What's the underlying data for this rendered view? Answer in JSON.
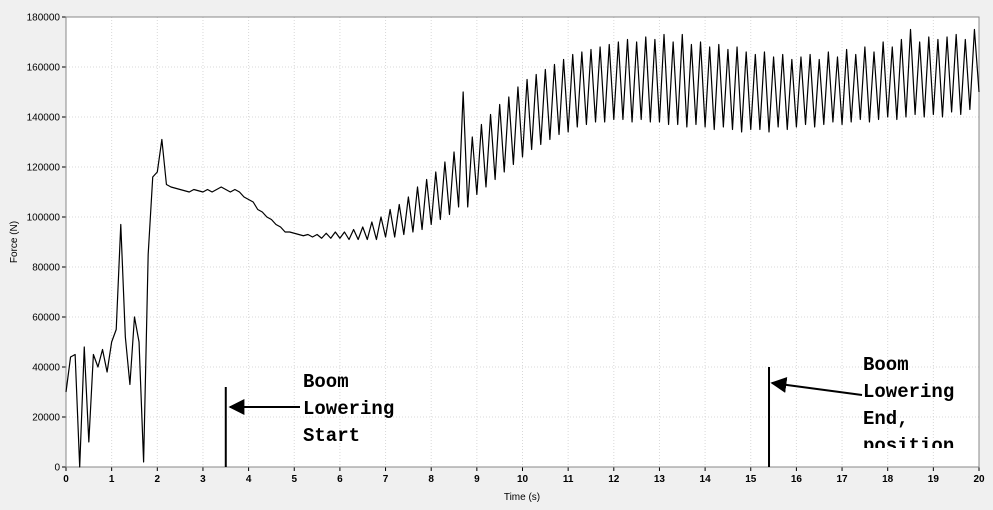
{
  "chart_data": {
    "type": "line",
    "xlabel": "Time (s)",
    "ylabel": "Force (N)",
    "x": [
      0,
      0.1,
      0.2,
      0.3,
      0.4,
      0.5,
      0.6,
      0.7,
      0.8,
      0.9,
      1,
      1.1,
      1.2,
      1.3,
      1.4,
      1.5,
      1.6,
      1.7,
      1.8,
      1.9,
      2,
      2.1,
      2.2,
      2.3,
      2.4,
      2.5,
      2.6,
      2.7,
      2.8,
      2.9,
      3,
      3.1,
      3.2,
      3.3,
      3.4,
      3.5,
      3.6,
      3.7,
      3.8,
      3.9,
      4,
      4.1,
      4.2,
      4.3,
      4.4,
      4.5,
      4.6,
      4.7,
      4.8,
      4.9,
      5,
      5.1,
      5.2,
      5.3,
      5.4,
      5.5,
      5.6,
      5.7,
      5.8,
      5.9,
      6,
      6.1,
      6.2,
      6.3,
      6.4,
      6.5,
      6.6,
      6.7,
      6.8,
      6.9,
      7,
      7.1,
      7.2,
      7.3,
      7.4,
      7.5,
      7.6,
      7.7,
      7.8,
      7.9,
      8,
      8.1,
      8.2,
      8.3,
      8.4,
      8.5,
      8.6,
      8.7,
      8.8,
      8.9,
      9,
      9.1,
      9.2,
      9.3,
      9.4,
      9.5,
      9.6,
      9.7,
      9.8,
      9.9,
      10,
      10.1,
      10.2,
      10.3,
      10.4,
      10.5,
      10.6,
      10.7,
      10.8,
      10.9,
      11,
      11.1,
      11.2,
      11.3,
      11.4,
      11.5,
      11.6,
      11.7,
      11.8,
      11.9,
      12,
      12.1,
      12.2,
      12.3,
      12.4,
      12.5,
      12.6,
      12.7,
      12.8,
      12.9,
      13,
      13.1,
      13.2,
      13.3,
      13.4,
      13.5,
      13.6,
      13.7,
      13.8,
      13.9,
      14,
      14.1,
      14.2,
      14.3,
      14.4,
      14.5,
      14.6,
      14.7,
      14.8,
      14.9,
      15,
      15.1,
      15.2,
      15.3,
      15.4,
      15.5,
      15.6,
      15.7,
      15.8,
      15.9,
      16,
      16.1,
      16.2,
      16.3,
      16.4,
      16.5,
      16.6,
      16.7,
      16.8,
      16.9,
      17,
      17.1,
      17.2,
      17.3,
      17.4,
      17.5,
      17.6,
      17.7,
      17.8,
      17.9,
      18,
      18.1,
      18.2,
      18.3,
      18.4,
      18.5,
      18.6,
      18.7,
      18.8,
      18.9,
      19,
      19.1,
      19.2,
      19.3,
      19.4,
      19.5,
      19.6,
      19.7,
      19.8,
      19.9,
      20
    ],
    "series": [
      {
        "color": "#000000",
        "values": [
          30000,
          44000,
          45000,
          0,
          48000,
          10000,
          45000,
          40000,
          47000,
          38000,
          50000,
          55000,
          97000,
          52000,
          33000,
          60000,
          50000,
          2000,
          85000,
          116000,
          118000,
          131000,
          113000,
          112000,
          111500,
          111000,
          110500,
          110000,
          111000,
          110500,
          110000,
          111000,
          110000,
          111000,
          112000,
          111000,
          110000,
          111000,
          110000,
          108000,
          107000,
          106000,
          103000,
          102000,
          100000,
          99000,
          97000,
          96000,
          94000,
          94000,
          93500,
          93000,
          92500,
          93000,
          92000,
          93000,
          91500,
          93500,
          91500,
          94000,
          91500,
          94000,
          91000,
          95000,
          91000,
          96000,
          91000,
          98000,
          91000,
          100000,
          92000,
          103000,
          92000,
          105000,
          93000,
          108000,
          94000,
          112000,
          95000,
          115000,
          97000,
          118000,
          99000,
          122000,
          101000,
          126000,
          104000,
          150000,
          104000,
          132000,
          109000,
          137000,
          112000,
          141000,
          115000,
          145000,
          118000,
          148000,
          121000,
          152000,
          124000,
          155000,
          127000,
          157000,
          129000,
          159000,
          131000,
          161000,
          133000,
          163000,
          134000,
          165000,
          136000,
          166000,
          137000,
          167000,
          138000,
          168000,
          138000,
          169000,
          139000,
          170000,
          139000,
          171000,
          138000,
          170000,
          139000,
          172000,
          138000,
          171000,
          138000,
          173000,
          137000,
          170000,
          137000,
          173000,
          136000,
          169000,
          137000,
          170000,
          136000,
          168000,
          135000,
          169000,
          136000,
          167000,
          135000,
          168000,
          134000,
          166000,
          135000,
          165000,
          135000,
          166000,
          134000,
          164000,
          136000,
          165000,
          135000,
          163000,
          136000,
          164000,
          137000,
          165000,
          136000,
          163000,
          137000,
          166000,
          138000,
          164000,
          137000,
          167000,
          138000,
          165000,
          139000,
          168000,
          138000,
          166000,
          139000,
          170000,
          140000,
          168000,
          139000,
          171000,
          140000,
          175000,
          141000,
          170000,
          140000,
          172000,
          141000,
          171000,
          140000,
          172000,
          142000,
          173000,
          141000,
          171000,
          143000,
          175000,
          150000
        ]
      }
    ],
    "xlim": [
      0,
      20
    ],
    "xticks": [
      0,
      1,
      2,
      3,
      4,
      5,
      6,
      7,
      8,
      9,
      10,
      11,
      12,
      13,
      14,
      15,
      16,
      17,
      18,
      19,
      20
    ],
    "ylim": [
      0,
      180000
    ],
    "yticks": [
      0,
      20000,
      40000,
      60000,
      80000,
      100000,
      120000,
      140000,
      160000,
      180000
    ],
    "grid": true,
    "annotations": [
      {
        "lines": [
          "Boom",
          "Lowering",
          "Start"
        ],
        "x": 3.5,
        "y": 32000
      },
      {
        "lines": [
          "Boom",
          "Lowering",
          "End,",
          "position"
        ],
        "x": 15.4,
        "y": 40000
      }
    ]
  }
}
